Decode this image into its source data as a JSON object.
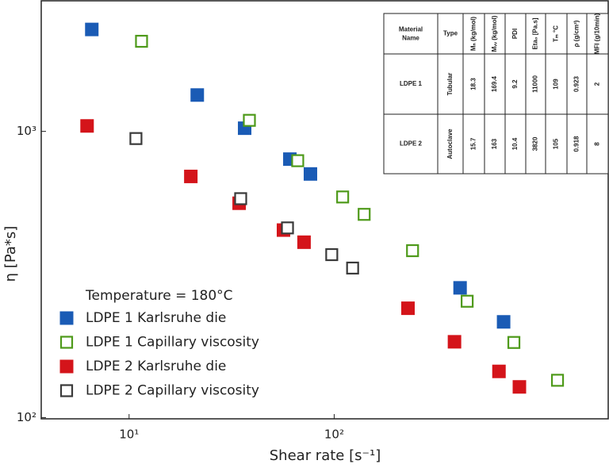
{
  "chart_data": {
    "type": "scatter",
    "xlabel": "Shear rate [s⁻¹]",
    "ylabel": "η [Pa*s]",
    "xscale": "log",
    "yscale": "log",
    "xlim": [
      3.73,
      2168
    ],
    "ylim": [
      99,
      2860
    ],
    "xticks": [
      {
        "value": 10,
        "label": "10¹"
      },
      {
        "value": 100,
        "label": "10²"
      }
    ],
    "yticks": [
      {
        "value": 100,
        "label": "10²"
      },
      {
        "value": 1000,
        "label": "10³"
      }
    ],
    "legend_title": "Temperature = 180°C",
    "legend": "lower left",
    "series": [
      {
        "name": "LDPE 1 Karlsruhe die",
        "color": "#1a5bb5",
        "marker": "filled",
        "x": [
          6.58,
          21.5,
          36.6,
          60.8,
          76.6,
          411,
          670
        ],
        "values": [
          2271,
          1340,
          1026,
          800,
          710,
          284,
          216
        ]
      },
      {
        "name": "LDPE 1 Capillary viscosity",
        "color": "#4e9a1a",
        "marker": "open",
        "x": [
          11.5,
          38.6,
          66.4,
          110,
          140,
          241,
          445,
          752,
          1227
        ],
        "values": [
          2065,
          1093,
          790,
          590,
          513,
          383,
          255,
          183,
          135
        ]
      },
      {
        "name": "LDPE 2 Karlsruhe die",
        "color": "#d4141a",
        "marker": "filled",
        "x": [
          6.24,
          20.0,
          34.4,
          56.6,
          71.3,
          229,
          386,
          636,
          800
        ],
        "values": [
          1045,
          696,
          561,
          452,
          410,
          241,
          184,
          145,
          128
        ]
      },
      {
        "name": "LDPE 2 Capillary viscosity",
        "color": "#3a3a3a",
        "marker": "open",
        "x": [
          10.8,
          35.0,
          59.2,
          97.3,
          123
        ],
        "values": [
          944,
          582,
          460,
          371,
          333
        ]
      }
    ]
  },
  "table": {
    "header": [
      "Material Name",
      "Type",
      "Mₙ (kg/mol)",
      "Mᵥᵥ (kg/mol)",
      "PDI",
      "Eta₀ [Pa.s]",
      "Tₘ °C",
      "ρ (g/cm³)",
      "MFI (g/10min)"
    ],
    "rows": [
      [
        "LDPE 1",
        "Tubular",
        "18.3",
        "169.4",
        "9.2",
        "11000",
        "109",
        "0.923",
        "2"
      ],
      [
        "LDPE 2",
        "Autoclave",
        "15.7",
        "163",
        "10.4",
        "3820",
        "105",
        "0.918",
        "8"
      ]
    ]
  }
}
